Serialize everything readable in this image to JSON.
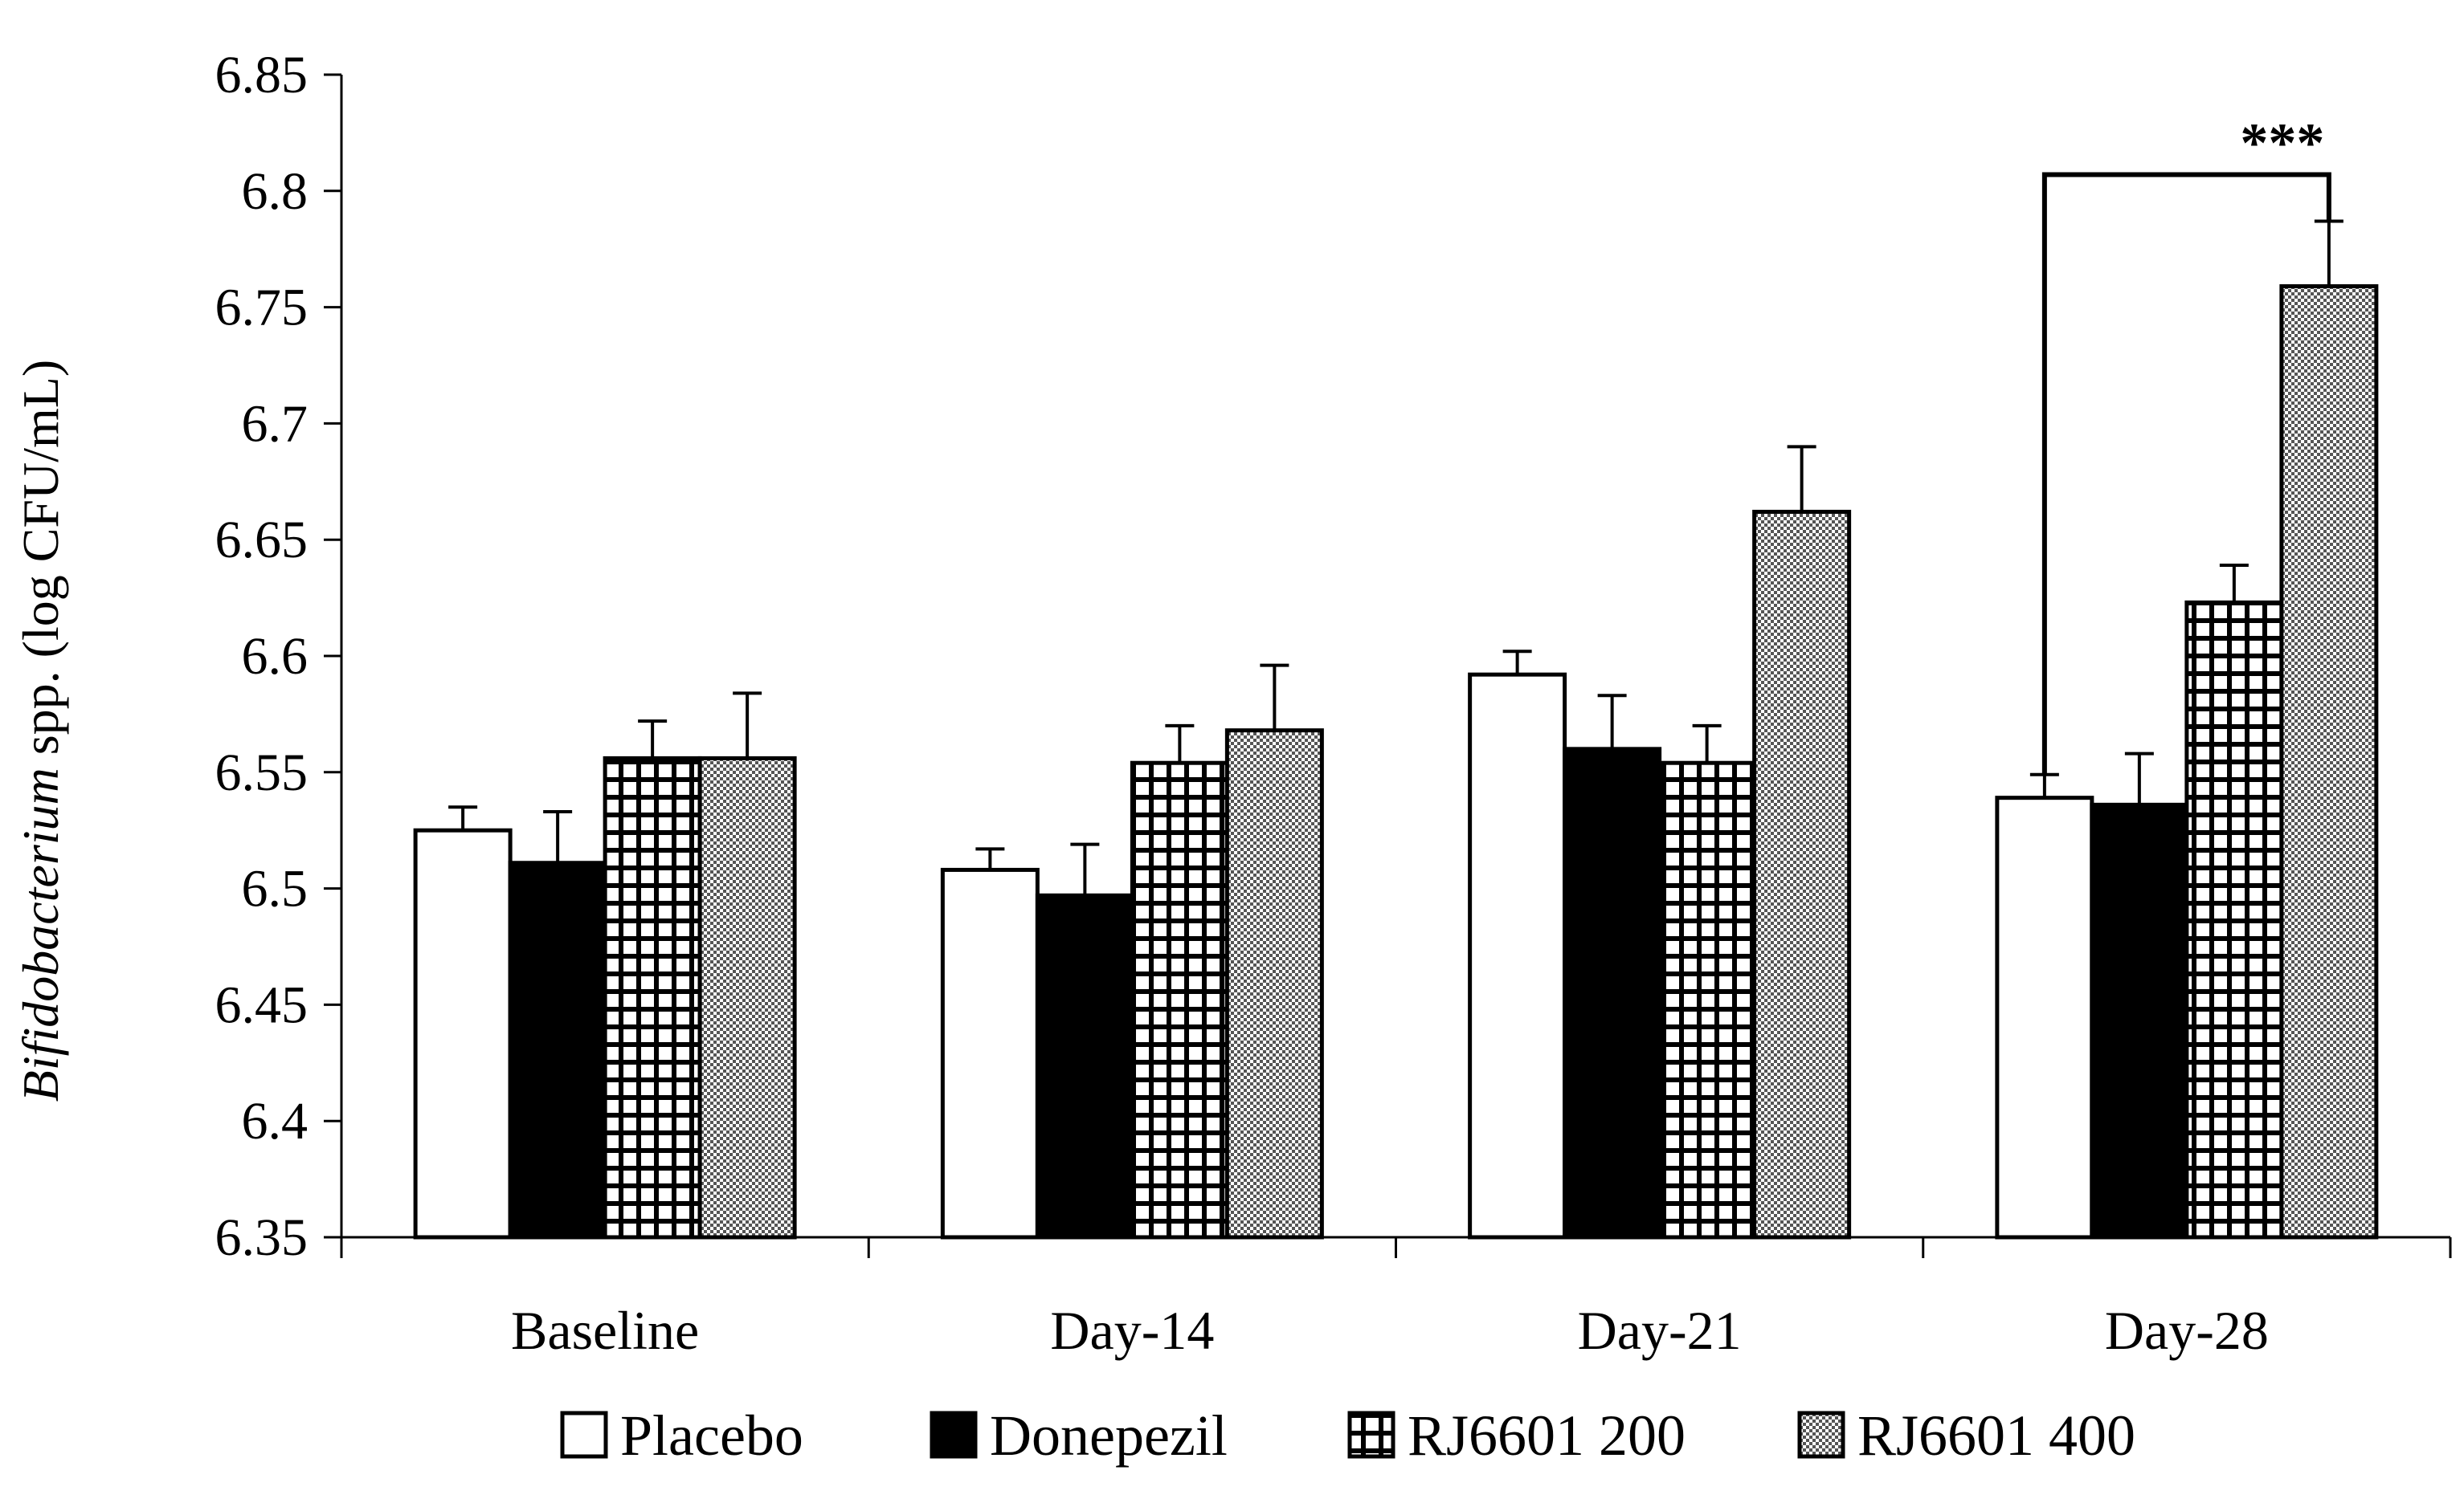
{
  "chart_data": {
    "type": "bar",
    "title": "",
    "xlabel": "",
    "ylabel_italic": "Bifidobacterium",
    "ylabel_rest": " spp. (log CFU/mL)",
    "ylim": [
      6.35,
      6.85
    ],
    "yticks": [
      "6.35",
      "6.4",
      "6.45",
      "6.5",
      "6.55",
      "6.6",
      "6.65",
      "6.7",
      "6.75",
      "6.8",
      "6.85"
    ],
    "grid": false,
    "legend_position": "bottom",
    "categories": [
      "Baseline",
      "Day-14",
      "Day-21",
      "Day-28"
    ],
    "series": [
      {
        "name": "Placebo",
        "pattern": "white",
        "values": [
          6.525,
          6.508,
          6.592,
          6.539
        ],
        "errors": [
          0.01,
          0.009,
          0.01,
          0.01
        ]
      },
      {
        "name": "Donepezil",
        "pattern": "black",
        "values": [
          6.511,
          6.497,
          6.56,
          6.536
        ],
        "errors": [
          0.022,
          0.022,
          0.023,
          0.022
        ]
      },
      {
        "name": "RJ6601 200",
        "pattern": "grid",
        "values": [
          6.556,
          6.554,
          6.554,
          6.623
        ],
        "errors": [
          0.016,
          0.016,
          0.016,
          0.016
        ]
      },
      {
        "name": "RJ6601 400",
        "pattern": "check",
        "values": [
          6.556,
          6.568,
          6.662,
          6.759
        ],
        "errors": [
          0.028,
          0.028,
          0.028,
          0.028
        ]
      }
    ],
    "annotations": [
      {
        "text": "***",
        "category": "Day-28",
        "from_series": "Placebo",
        "to_series": "RJ6601 400",
        "level": 6.807
      }
    ]
  }
}
